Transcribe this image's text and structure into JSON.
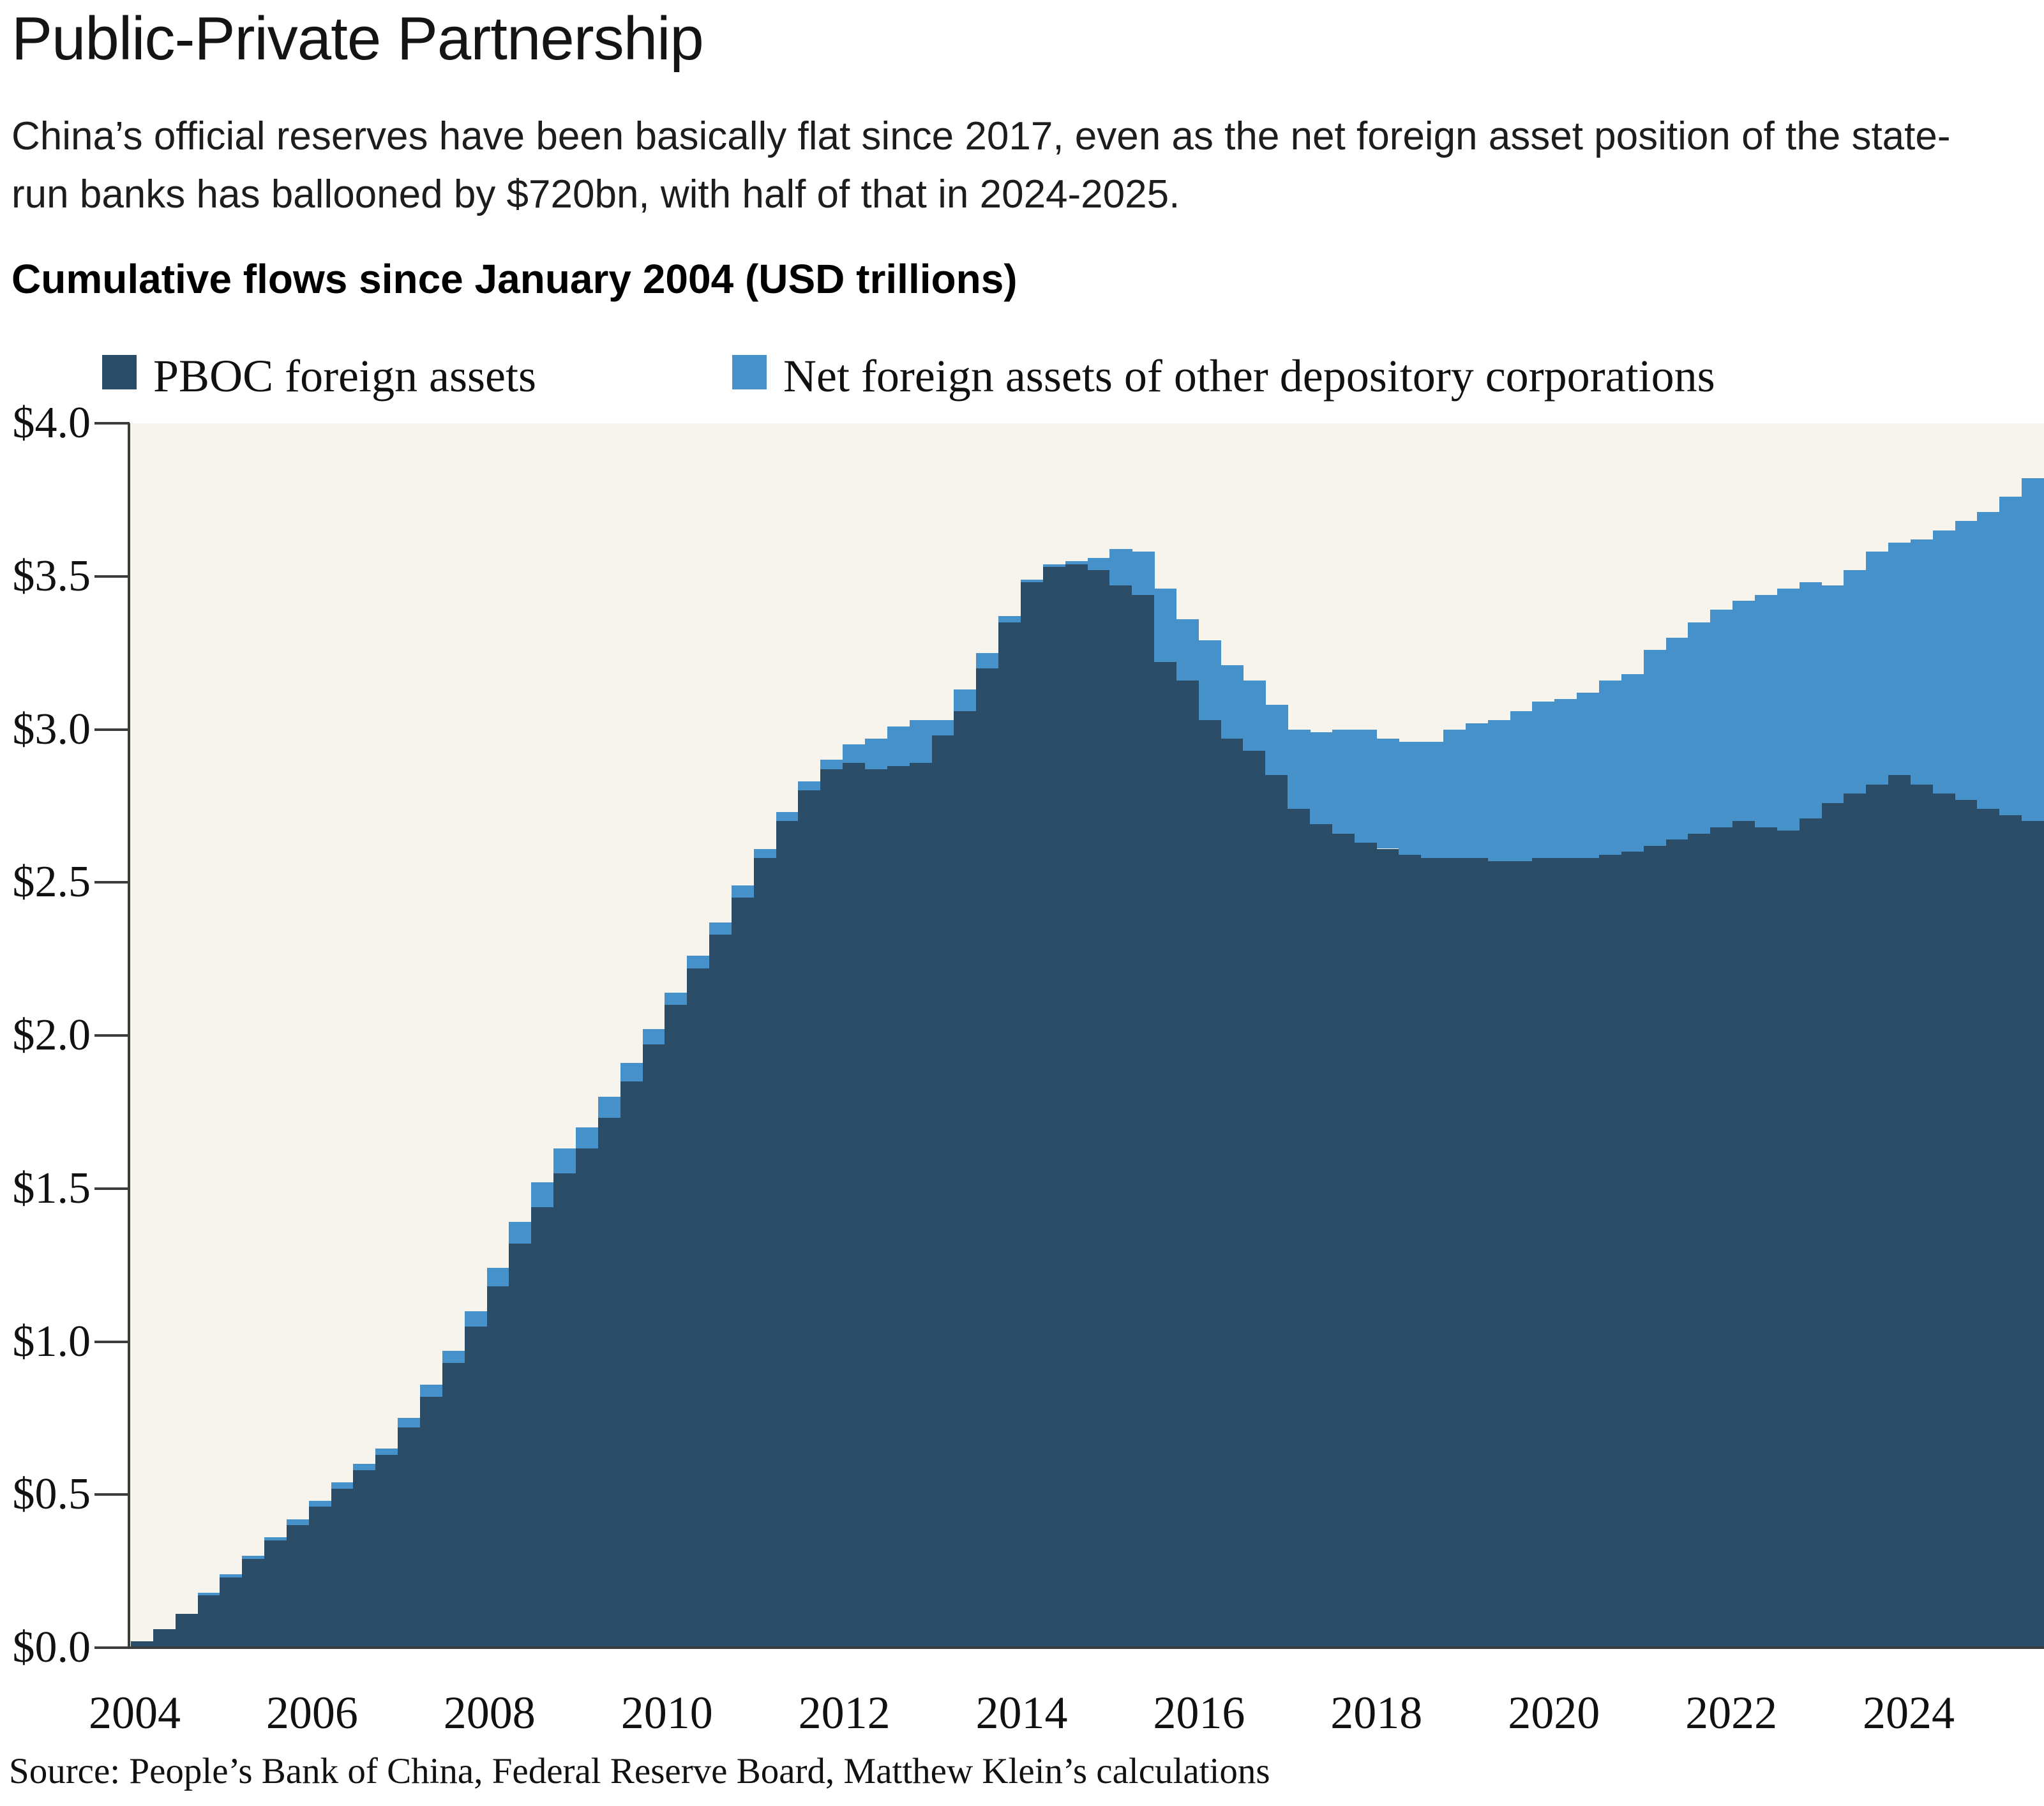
{
  "header": {
    "title": "Public-Private Partnership",
    "subtitle": "China’s official reserves have been basically flat since 2017, even as the net foreign asset position of the state-run banks has ballooned by $720bn, with half of that in 2024-2025.",
    "axis_heading": "Cumulative flows since January 2004 (USD trillions)"
  },
  "legend": {
    "items": [
      {
        "label": "PBOC foreign assets",
        "color": "#2b4c66"
      },
      {
        "label": "Net foreign assets of other depository corporations",
        "color": "#4791cb"
      }
    ]
  },
  "source": "Source: People’s Bank of China, Federal Reserve Board, Matthew Klein’s calculations",
  "chart_data": {
    "type": "bar",
    "stacked": true,
    "title": "Cumulative flows since January 2004 (USD trillions)",
    "xlabel": "",
    "ylabel": "Cumulative flows since January 2004, USD trillions",
    "ylim": [
      0,
      4
    ],
    "grid": false,
    "legend_position": "top",
    "plot_background": "#f7f4ed",
    "axis_color": "#3c3c3c",
    "yticks": [
      "$0.0",
      "$0.5",
      "$1.0",
      "$1.5",
      "$2.0",
      "$2.5",
      "$3.0",
      "$3.5",
      "$4.0"
    ],
    "xticks": [
      2004,
      2006,
      2008,
      2010,
      2012,
      2014,
      2016,
      2018,
      2020,
      2022,
      2024
    ],
    "x_unit": "quarter",
    "x": [
      "2004Q1",
      "2004Q2",
      "2004Q3",
      "2004Q4",
      "2005Q1",
      "2005Q2",
      "2005Q3",
      "2005Q4",
      "2006Q1",
      "2006Q2",
      "2006Q3",
      "2006Q4",
      "2007Q1",
      "2007Q2",
      "2007Q3",
      "2007Q4",
      "2008Q1",
      "2008Q2",
      "2008Q3",
      "2008Q4",
      "2009Q1",
      "2009Q2",
      "2009Q3",
      "2009Q4",
      "2010Q1",
      "2010Q2",
      "2010Q3",
      "2010Q4",
      "2011Q1",
      "2011Q2",
      "2011Q3",
      "2011Q4",
      "2012Q1",
      "2012Q2",
      "2012Q3",
      "2012Q4",
      "2013Q1",
      "2013Q2",
      "2013Q3",
      "2013Q4",
      "2014Q1",
      "2014Q2",
      "2014Q3",
      "2014Q4",
      "2015Q1",
      "2015Q2",
      "2015Q3",
      "2015Q4",
      "2016Q1",
      "2016Q2",
      "2016Q3",
      "2016Q4",
      "2017Q1",
      "2017Q2",
      "2017Q3",
      "2017Q4",
      "2018Q1",
      "2018Q2",
      "2018Q3",
      "2018Q4",
      "2019Q1",
      "2019Q2",
      "2019Q3",
      "2019Q4",
      "2020Q1",
      "2020Q2",
      "2020Q3",
      "2020Q4",
      "2021Q1",
      "2021Q2",
      "2021Q3",
      "2021Q4",
      "2022Q1",
      "2022Q2",
      "2022Q3",
      "2022Q4",
      "2023Q1",
      "2023Q2",
      "2023Q3",
      "2023Q4",
      "2024Q1",
      "2024Q2",
      "2024Q3",
      "2024Q4",
      "2025Q1",
      "2025Q2"
    ],
    "series": [
      {
        "name": "PBOC foreign assets",
        "color": "#2b4c66",
        "values": [
          0.02,
          0.06,
          0.11,
          0.17,
          0.23,
          0.29,
          0.35,
          0.4,
          0.46,
          0.52,
          0.58,
          0.63,
          0.72,
          0.82,
          0.93,
          1.05,
          1.18,
          1.32,
          1.44,
          1.55,
          1.63,
          1.73,
          1.85,
          1.97,
          2.1,
          2.22,
          2.33,
          2.45,
          2.58,
          2.7,
          2.8,
          2.87,
          2.89,
          2.87,
          2.88,
          2.89,
          2.98,
          3.06,
          3.2,
          3.35,
          3.48,
          3.53,
          3.54,
          3.52,
          3.47,
          3.44,
          3.22,
          3.16,
          3.03,
          2.97,
          2.93,
          2.85,
          2.74,
          2.69,
          2.66,
          2.63,
          2.61,
          2.59,
          2.58,
          2.58,
          2.58,
          2.57,
          2.57,
          2.58,
          2.58,
          2.58,
          2.59,
          2.6,
          2.62,
          2.64,
          2.66,
          2.68,
          2.7,
          2.68,
          2.67,
          2.71,
          2.76,
          2.79,
          2.82,
          2.85,
          2.82,
          2.79,
          2.77,
          2.74,
          2.72,
          2.7
        ]
      },
      {
        "name": "Net foreign assets of other depository corporations",
        "color": "#4791cb",
        "values": [
          0.0,
          0.0,
          0.0,
          0.01,
          0.01,
          0.01,
          0.01,
          0.02,
          0.02,
          0.02,
          0.02,
          0.02,
          0.03,
          0.04,
          0.04,
          0.05,
          0.06,
          0.07,
          0.08,
          0.08,
          0.07,
          0.07,
          0.06,
          0.05,
          0.04,
          0.04,
          0.04,
          0.04,
          0.03,
          0.03,
          0.03,
          0.03,
          0.06,
          0.1,
          0.13,
          0.14,
          0.05,
          0.07,
          0.05,
          0.02,
          0.01,
          0.01,
          0.01,
          0.04,
          0.12,
          0.14,
          0.24,
          0.2,
          0.26,
          0.24,
          0.23,
          0.23,
          0.26,
          0.3,
          0.34,
          0.37,
          0.36,
          0.37,
          0.38,
          0.42,
          0.44,
          0.46,
          0.49,
          0.51,
          0.52,
          0.54,
          0.57,
          0.58,
          0.64,
          0.66,
          0.69,
          0.71,
          0.72,
          0.76,
          0.79,
          0.77,
          0.71,
          0.73,
          0.76,
          0.76,
          0.8,
          0.86,
          0.91,
          0.97,
          1.04,
          1.12
        ]
      }
    ]
  }
}
